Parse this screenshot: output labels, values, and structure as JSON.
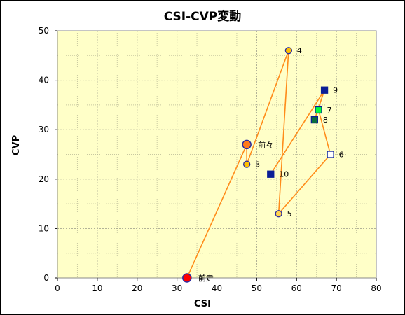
{
  "chart_data": {
    "type": "scatter",
    "title": "CSI-CVP変動",
    "xlabel": "CSI",
    "ylabel": "CVP",
    "xlim": [
      0,
      80
    ],
    "ylim": [
      0,
      50
    ],
    "x_ticks": [
      0,
      10,
      20,
      30,
      40,
      50,
      60,
      70,
      80
    ],
    "y_ticks": [
      0,
      10,
      20,
      30,
      40,
      50
    ],
    "grid": true,
    "line_color": "#ff8c1a",
    "plot_background": "#ffffc8",
    "points": [
      {
        "label": "前走",
        "x": 32.5,
        "y": 0,
        "marker": "circle-large",
        "fill": "#ff0000",
        "stroke": "#2a2aa0"
      },
      {
        "label": "前々",
        "x": 47.5,
        "y": 27,
        "marker": "circle-large",
        "fill": "#ff7a1a",
        "stroke": "#2a2aa0"
      },
      {
        "label": "3",
        "x": 47.5,
        "y": 23,
        "marker": "circle",
        "fill": "#ffc000",
        "stroke": "#2a2aa0"
      },
      {
        "label": "4",
        "x": 58,
        "y": 46,
        "marker": "circle",
        "fill": "#ffc000",
        "stroke": "#2a2aa0"
      },
      {
        "label": "5",
        "x": 55.5,
        "y": 13,
        "marker": "circle",
        "fill": "#ffd24d",
        "stroke": "#2a2aa0"
      },
      {
        "label": "6",
        "x": 68.5,
        "y": 25,
        "marker": "square",
        "fill": "#ffffff",
        "stroke": "#0a1e96"
      },
      {
        "label": "7",
        "x": 65.5,
        "y": 34,
        "marker": "square",
        "fill": "#00ff3c",
        "stroke": "#0a1e96"
      },
      {
        "label": "8",
        "x": 64.5,
        "y": 32,
        "marker": "square",
        "fill": "#0a6e3c",
        "stroke": "#0a1e96"
      },
      {
        "label": "9",
        "x": 67,
        "y": 38,
        "marker": "square",
        "fill": "#0a1e96",
        "stroke": "#0a1e96"
      },
      {
        "label": "10",
        "x": 53.5,
        "y": 21,
        "marker": "square",
        "fill": "#0a1e96",
        "stroke": "#0a1e96"
      }
    ]
  }
}
